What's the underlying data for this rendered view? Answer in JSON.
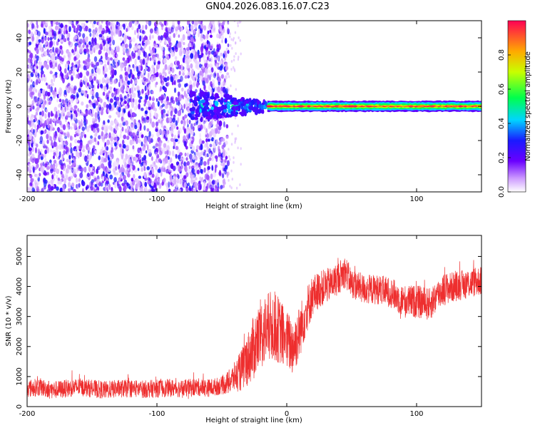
{
  "title": "GN04.2026.083.16.07.C23",
  "chart_data": [
    {
      "type": "heatmap",
      "name": "spectrogram",
      "title": "GN04.2026.083.16.07.C23",
      "xlabel": "Height of straight line (km)",
      "ylabel": "Frequency (Hz)",
      "xlim": [
        -200,
        150
      ],
      "ylim": [
        -50,
        50
      ],
      "xticks": [
        -200,
        -100,
        0,
        100
      ],
      "yticks": [
        -40,
        -20,
        0,
        20,
        40
      ],
      "colorbar": {
        "label": "Normalized spectral amplitude",
        "range": [
          0,
          1
        ],
        "ticks": [
          0.0,
          0.2,
          0.4,
          0.6,
          0.8
        ]
      },
      "regions": [
        {
          "description": "diffuse noise",
          "x_range": [
            -200,
            -45
          ],
          "freq_range": [
            -50,
            50
          ],
          "amplitude": 0.1
        },
        {
          "description": "signal onset",
          "x_range": [
            -75,
            -15
          ],
          "freq_range": [
            -10,
            10
          ],
          "amplitude": 0.3
        },
        {
          "description": "steady carrier",
          "x_range": [
            -15,
            150
          ],
          "freq_range": [
            -3,
            3
          ],
          "amplitude": 0.95
        }
      ]
    },
    {
      "type": "line",
      "name": "snr",
      "xlabel": "Height of straight line (km)",
      "ylabel": "SNR (10 * v/v)",
      "xlim": [
        -200,
        150
      ],
      "ylim": [
        0,
        5700
      ],
      "xticks": [
        -200,
        -100,
        0,
        100
      ],
      "yticks": [
        0,
        1000,
        2000,
        3000,
        4000,
        5000
      ],
      "color": "#ee2e2e",
      "series": [
        {
          "name": "SNR",
          "x": [
            -200,
            -190,
            -180,
            -170,
            -160,
            -150,
            -140,
            -130,
            -120,
            -110,
            -100,
            -90,
            -80,
            -70,
            -60,
            -50,
            -45,
            -40,
            -35,
            -30,
            -25,
            -20,
            -15,
            -10,
            -5,
            0,
            5,
            10,
            15,
            20,
            25,
            30,
            35,
            40,
            45,
            50,
            60,
            70,
            80,
            90,
            100,
            110,
            120,
            130,
            140,
            150
          ],
          "y": [
            600,
            650,
            550,
            600,
            650,
            600,
            550,
            600,
            600,
            580,
            600,
            620,
            600,
            650,
            620,
            700,
            800,
            1000,
            1200,
            1600,
            2000,
            2400,
            2600,
            2700,
            2500,
            2200,
            2000,
            2500,
            3200,
            3700,
            3900,
            4000,
            4100,
            4300,
            4500,
            4100,
            3900,
            3900,
            3800,
            3500,
            3500,
            3400,
            3900,
            4000,
            4100,
            4200
          ],
          "noise_amplitude": [
            300,
            300,
            300,
            300,
            300,
            300,
            300,
            300,
            300,
            300,
            300,
            300,
            300,
            300,
            300,
            300,
            400,
            500,
            700,
            900,
            1100,
            1200,
            1200,
            1200,
            1100,
            1000,
            1000,
            900,
            800,
            700,
            600,
            600,
            550,
            550,
            550,
            500,
            500,
            500,
            500,
            550,
            550,
            550,
            550,
            500,
            500,
            500
          ]
        }
      ]
    }
  ]
}
